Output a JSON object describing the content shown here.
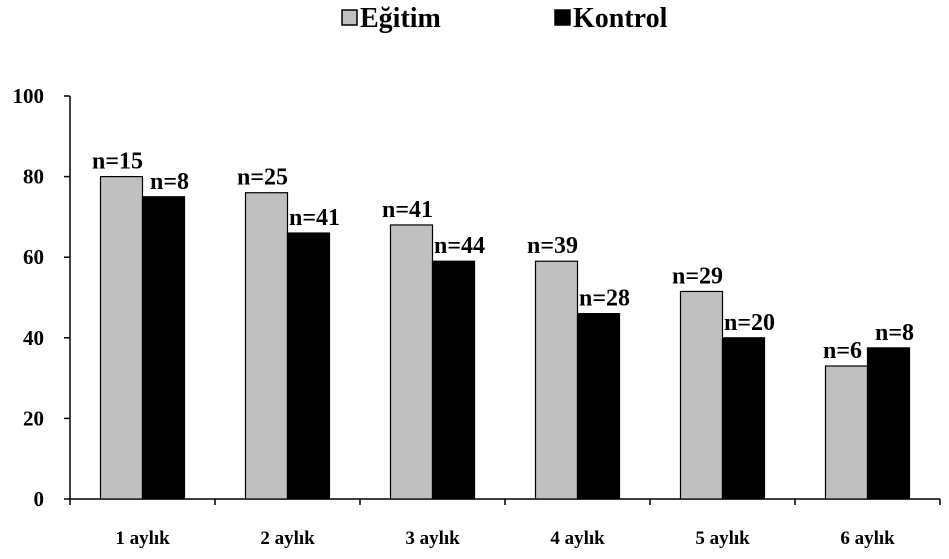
{
  "chart_data": {
    "type": "bar",
    "title": "",
    "xlabel": "",
    "ylabel": "",
    "categories": [
      "1 aylık",
      "2 aylık",
      "3 aylık",
      "4 aylık",
      "5 aylık",
      "6 aylık"
    ],
    "series": [
      {
        "name": "Eğitim",
        "color": "#c0c0c0",
        "values": [
          80,
          76,
          68,
          59,
          51.5,
          33
        ],
        "labels": [
          "n=15",
          "n=25",
          "n=41",
          "n=39",
          "n=29",
          "n=6"
        ]
      },
      {
        "name": "Kontrol",
        "color": "#000000",
        "values": [
          75,
          66,
          59,
          46,
          40,
          37.5
        ],
        "labels": [
          "n=8",
          "n=41",
          "n=44",
          "n=28",
          "n=20",
          "n=8"
        ]
      }
    ],
    "ylim": [
      0,
      100
    ],
    "yticks": [
      0,
      20,
      40,
      60,
      80,
      100
    ],
    "grid": false,
    "legend_position": "top-center"
  }
}
